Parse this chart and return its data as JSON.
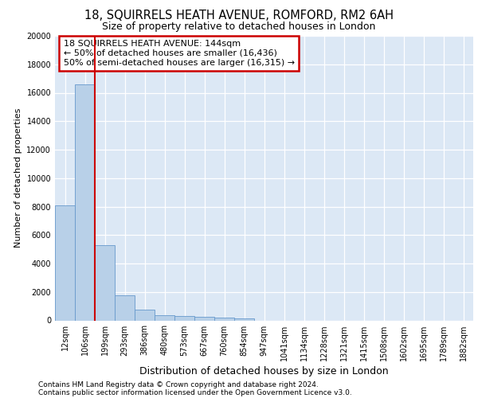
{
  "title1": "18, SQUIRRELS HEATH AVENUE, ROMFORD, RM2 6AH",
  "title2": "Size of property relative to detached houses in London",
  "xlabel": "Distribution of detached houses by size in London",
  "ylabel": "Number of detached properties",
  "annotation_line1": "18 SQUIRRELS HEATH AVENUE: 144sqm",
  "annotation_line2": "← 50% of detached houses are smaller (16,436)",
  "annotation_line3": "50% of semi-detached houses are larger (16,315) →",
  "footer1": "Contains HM Land Registry data © Crown copyright and database right 2024.",
  "footer2": "Contains public sector information licensed under the Open Government Licence v3.0.",
  "categories": [
    "12sqm",
    "106sqm",
    "199sqm",
    "293sqm",
    "386sqm",
    "480sqm",
    "573sqm",
    "667sqm",
    "760sqm",
    "854sqm",
    "947sqm",
    "1041sqm",
    "1134sqm",
    "1228sqm",
    "1321sqm",
    "1415sqm",
    "1508sqm",
    "1602sqm",
    "1695sqm",
    "1789sqm",
    "1882sqm"
  ],
  "values": [
    8100,
    16600,
    5300,
    1750,
    750,
    380,
    290,
    230,
    190,
    130,
    0,
    0,
    0,
    0,
    0,
    0,
    0,
    0,
    0,
    0,
    0
  ],
  "bar_color": "#b8d0e8",
  "bar_edge_color": "#6699cc",
  "vline_color": "#cc0000",
  "vline_x": 1.5,
  "annotation_box_color": "#cc0000",
  "plot_bg_color": "#dce8f5",
  "fig_bg_color": "#ffffff",
  "ylim": [
    0,
    20000
  ],
  "yticks": [
    0,
    2000,
    4000,
    6000,
    8000,
    10000,
    12000,
    14000,
    16000,
    18000,
    20000
  ],
  "title1_fontsize": 10.5,
  "title2_fontsize": 9,
  "ylabel_fontsize": 8,
  "xlabel_fontsize": 9,
  "tick_fontsize": 7,
  "footer_fontsize": 6.5
}
